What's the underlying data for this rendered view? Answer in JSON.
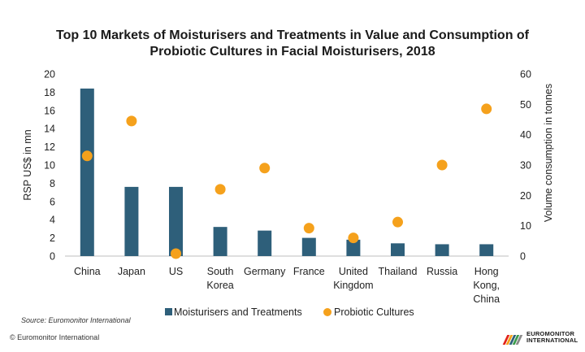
{
  "title": "Top 10 Markets of Moisturisers and Treatments in Value and Consumption of Probiotic Cultures in Facial Moisturisers, 2018",
  "source": "Source: Euromonitor International",
  "copyright": "© Euromonitor International",
  "brand": {
    "line1": "EUROMONITOR",
    "line2": "INTERNATIONAL"
  },
  "colors": {
    "bars": "#2e5f7a",
    "dots": "#f5a11c",
    "axis": "#bfbfbf"
  },
  "chart_data": {
    "type": "bar",
    "title": "Top 10 Markets of Moisturisers and Treatments in Value and Consumption of Probiotic Cultures in Facial Moisturisers, 2018",
    "categories": [
      [
        "China"
      ],
      [
        "Japan"
      ],
      [
        "US"
      ],
      [
        "South",
        "Korea"
      ],
      [
        "Germany"
      ],
      [
        "France"
      ],
      [
        "United",
        "Kingdom"
      ],
      [
        "Thailand"
      ],
      [
        "Russia"
      ],
      [
        "Hong",
        "Kong,",
        "China"
      ]
    ],
    "ylabel": "RSP US$ in mn",
    "y2label": "Volume consumption in tonnes",
    "ylim": [
      0,
      20
    ],
    "y2lim": [
      0,
      60
    ],
    "yticks": [
      0,
      2,
      4,
      6,
      8,
      10,
      12,
      14,
      16,
      18,
      20
    ],
    "y2ticks": [
      0,
      10,
      20,
      30,
      40,
      50,
      60
    ],
    "grid": false,
    "legend_position": "bottom",
    "series": [
      {
        "name": "Moisturisers and Treatments",
        "type": "bar",
        "axis": "left",
        "values": [
          18.4,
          7.6,
          7.6,
          3.2,
          2.8,
          2.0,
          1.8,
          1.4,
          1.3,
          1.3
        ]
      },
      {
        "name": "Probiotic Cultures",
        "type": "scatter",
        "axis": "right",
        "values": [
          33,
          44.5,
          0.8,
          22,
          29,
          9.2,
          6,
          11.2,
          30,
          48.5
        ]
      }
    ]
  }
}
